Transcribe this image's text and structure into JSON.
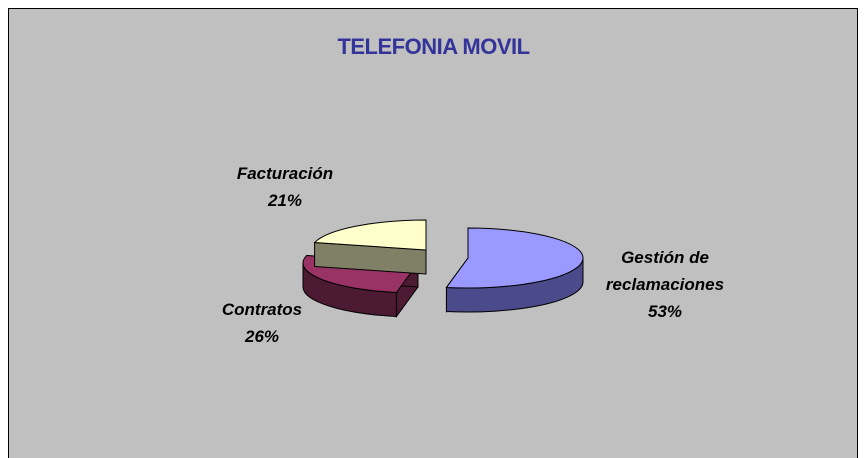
{
  "chart_data": {
    "type": "pie",
    "title": "TELEFONIA MOVIL",
    "categories": [
      "Gestión de reclamaciones",
      "Contratos",
      "Facturación"
    ],
    "values": [
      53,
      26,
      21
    ],
    "value_labels": [
      "53%",
      "26%",
      "21%"
    ],
    "colors": [
      "#9999ff",
      "#993366",
      "#ffffcc"
    ],
    "side_colors": [
      "#4b4b8c",
      "#4d1a33",
      "#808066"
    ]
  }
}
